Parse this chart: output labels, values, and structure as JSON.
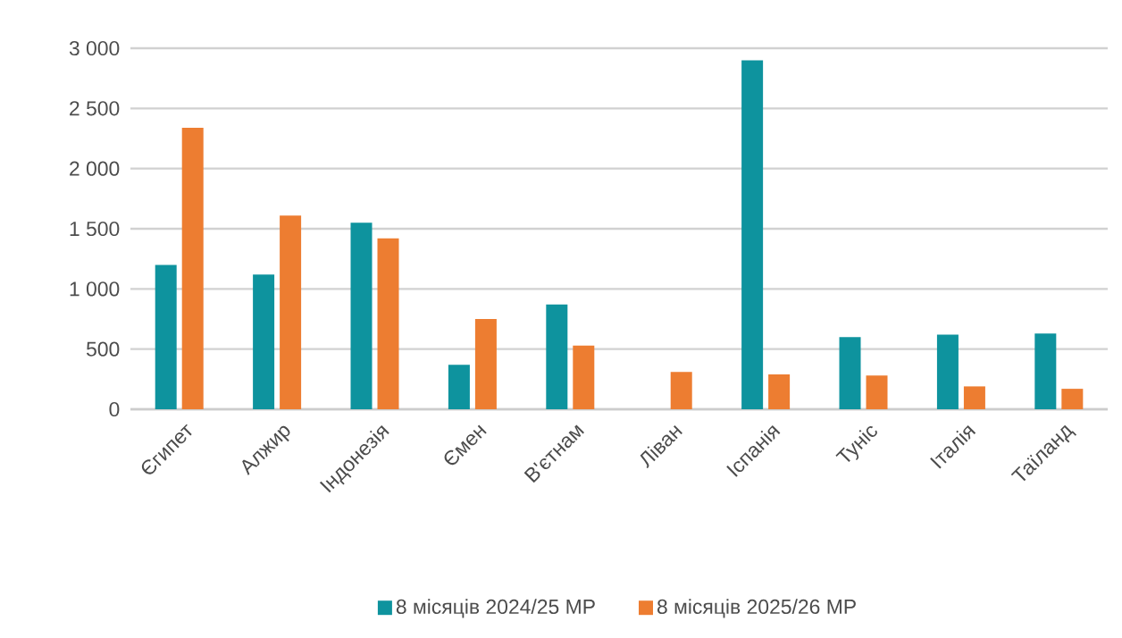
{
  "chart_data": {
    "type": "bar",
    "categories": [
      "Єгипет",
      "Алжир",
      "Індонезія",
      "Ємен",
      "В'єтнам",
      "Ліван",
      "Іспанія",
      "Туніс",
      "Італія",
      "Таїланд"
    ],
    "series": [
      {
        "name": "8 місяців 2024/25 МР",
        "color": "#0e939e",
        "values": [
          1200,
          1120,
          1550,
          370,
          870,
          null,
          2900,
          600,
          620,
          630
        ]
      },
      {
        "name": "8 місяців 2025/26 МР",
        "color": "#ed7d31",
        "values": [
          2340,
          1610,
          1420,
          750,
          530,
          310,
          290,
          280,
          190,
          170
        ]
      }
    ],
    "ylim": [
      0,
      3000
    ],
    "yticks": [
      0,
      500,
      {
        "value": 1000,
        "label": "1 000"
      },
      {
        "value": 1500,
        "label": "1 500"
      },
      {
        "value": 2000,
        "label": "2 000"
      },
      {
        "value": 2500,
        "label": "2 500"
      },
      {
        "value": 3000,
        "label": "3 000"
      }
    ],
    "grid": "y",
    "legend": "bottom"
  }
}
